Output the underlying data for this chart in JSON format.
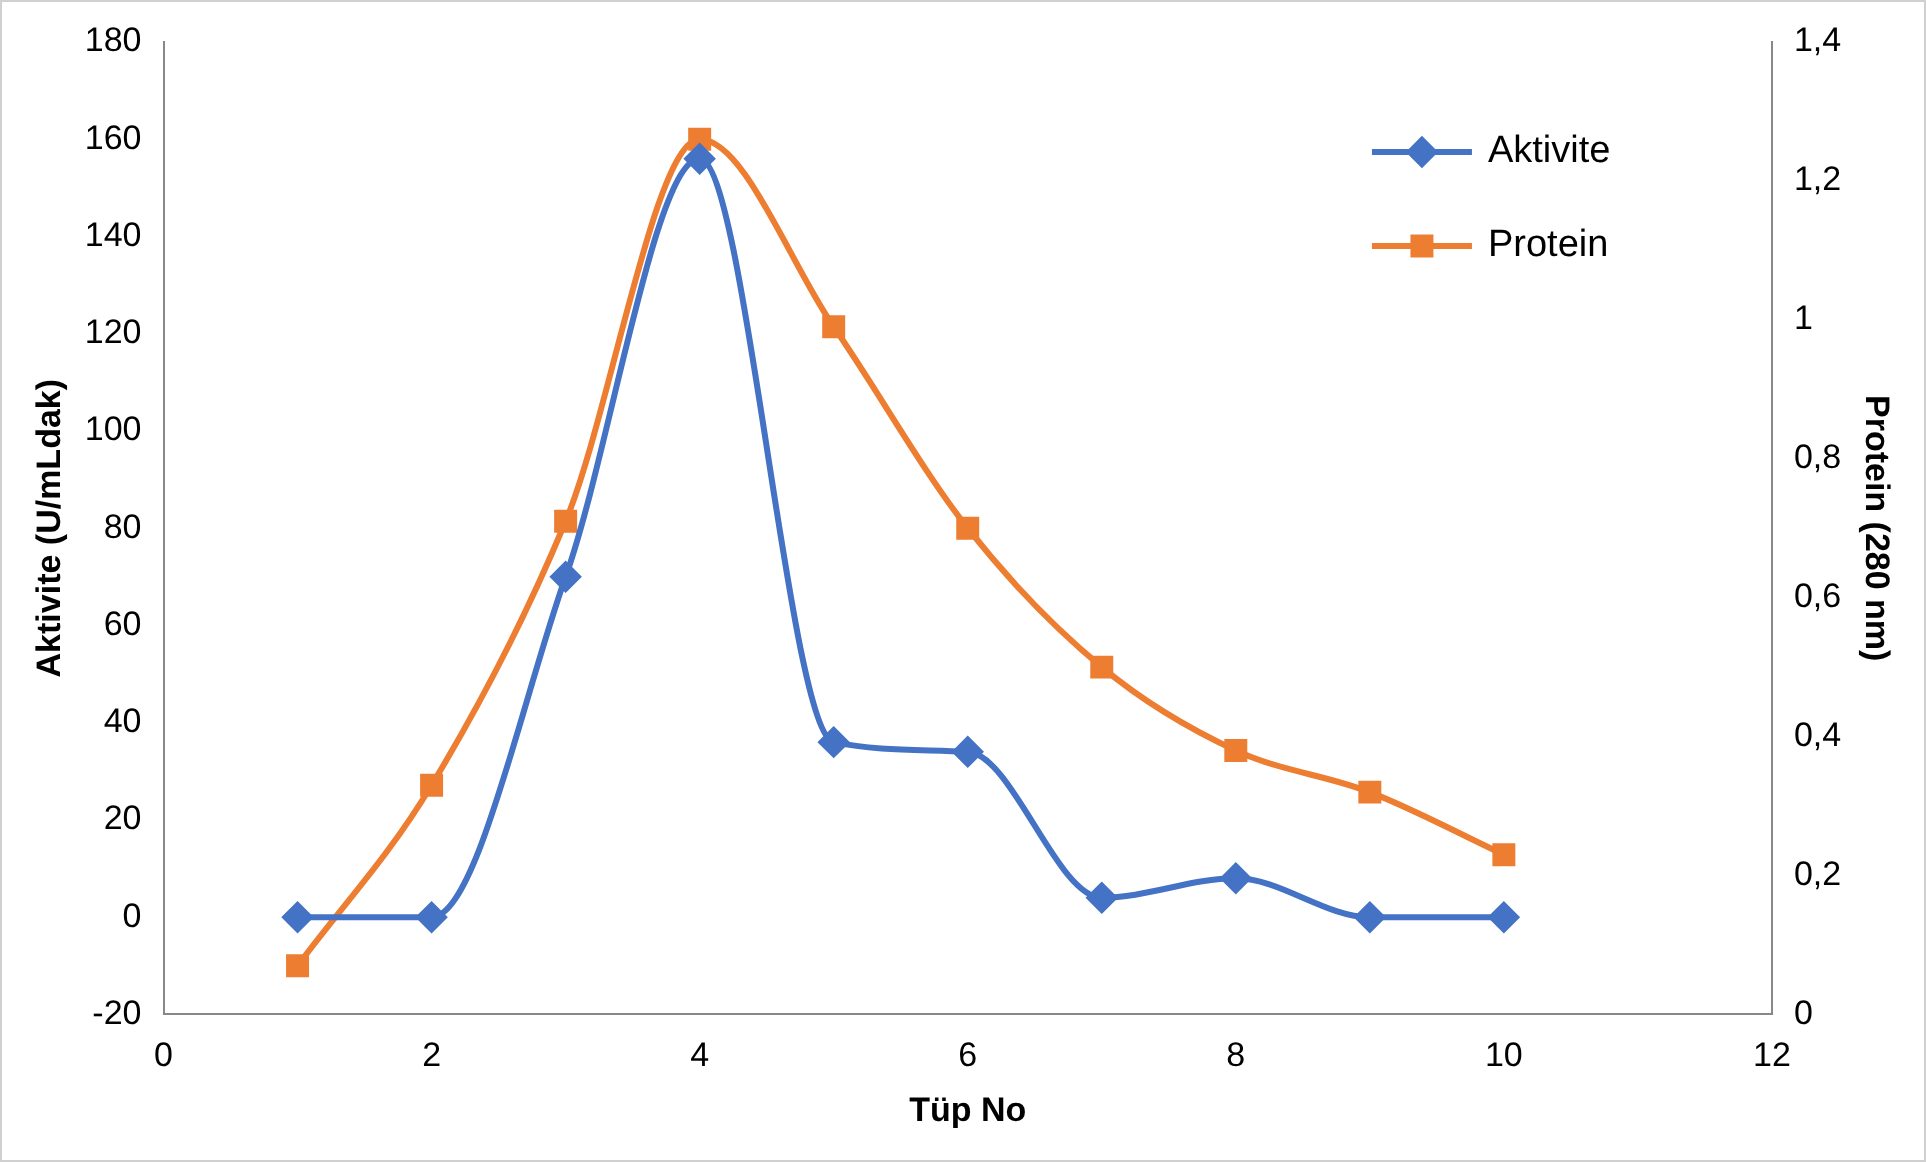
{
  "chart_data": {
    "type": "line",
    "xlabel": "Tüp No",
    "ylabel": "Aktivite (U/mLdak)",
    "y2label": "Protein (280 nm)",
    "x": [
      1,
      2,
      3,
      4,
      5,
      6,
      7,
      8,
      9,
      10
    ],
    "xlim": [
      0,
      12
    ],
    "xticks": [
      0,
      2,
      4,
      6,
      8,
      10,
      12
    ],
    "ylim": [
      -20,
      180
    ],
    "yticks": [
      -20,
      0,
      20,
      40,
      60,
      80,
      100,
      120,
      140,
      160,
      180
    ],
    "y2lim": [
      0,
      1.4
    ],
    "y2ticks": [
      0,
      {
        "value": 0.2,
        "label": "0,2"
      },
      {
        "value": 0.4,
        "label": "0,4"
      },
      {
        "value": 0.6,
        "label": "0,6"
      },
      {
        "value": 0.8,
        "label": "0,8"
      },
      1,
      {
        "value": 1.2,
        "label": "1,2"
      },
      {
        "value": 1.4,
        "label": "1,4"
      }
    ],
    "series": [
      {
        "name": "Aktivite",
        "color": "#4472c4",
        "marker": "diamond",
        "values": [
          0,
          0,
          70,
          156,
          36,
          34,
          4,
          8,
          0,
          0
        ]
      },
      {
        "name": "Protein",
        "color": "#ed7d31",
        "marker": "square",
        "axis": "y2",
        "values": [
          0.07,
          0.33,
          0.71,
          1.26,
          0.99,
          0.7,
          0.5,
          0.38,
          0.32,
          0.23
        ]
      }
    ],
    "grid": false,
    "legend": "top right"
  }
}
